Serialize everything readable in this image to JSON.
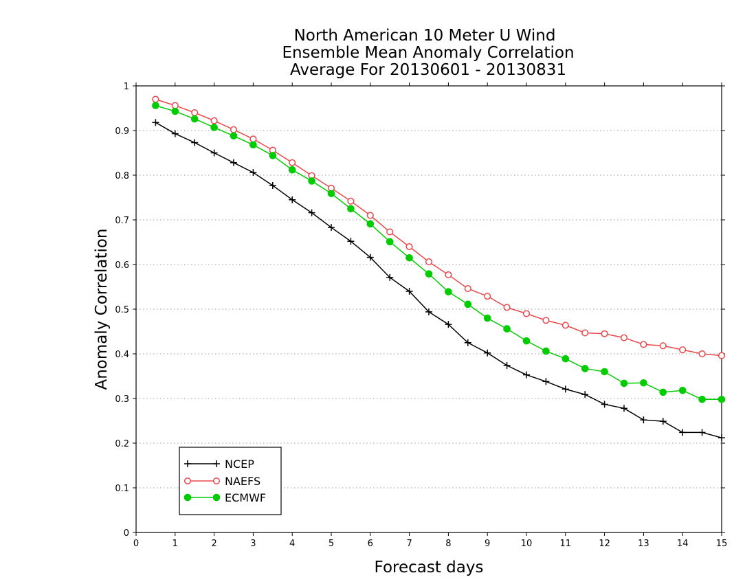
{
  "chart_data": {
    "type": "line",
    "title_lines": [
      "North American 10 Meter U Wind",
      "Ensemble Mean Anomaly Correlation",
      "Average For 20130601 - 20130831"
    ],
    "xlabel": "Forecast days",
    "ylabel": "Anomaly Correlation",
    "xlim": [
      0,
      15
    ],
    "ylim": [
      0,
      1
    ],
    "x_ticks": [
      "0",
      "1",
      "2",
      "3",
      "4",
      "5",
      "6",
      "7",
      "8",
      "9",
      "10",
      "11",
      "12",
      "13",
      "14",
      "15"
    ],
    "y_ticks": [
      "0",
      "0.1",
      "0.2",
      "0.3",
      "0.4",
      "0.5",
      "0.6",
      "0.7",
      "0.8",
      "0.9",
      "1"
    ],
    "grid": "horizontal-dotted",
    "legend_position": "bottom-left",
    "x": [
      0.5,
      1,
      1.5,
      2,
      2.5,
      3,
      3.5,
      4,
      4.5,
      5,
      5.5,
      6,
      6.5,
      7,
      7.5,
      8,
      8.5,
      9,
      9.5,
      10,
      10.5,
      11,
      11.5,
      12,
      12.5,
      13,
      13.5,
      14,
      14.5,
      15
    ],
    "series": [
      {
        "name": "NCEP",
        "color": "#000000",
        "marker": "plus",
        "values": [
          0.918,
          0.893,
          0.873,
          0.85,
          0.828,
          0.806,
          0.777,
          0.745,
          0.716,
          0.683,
          0.652,
          0.616,
          0.571,
          0.54,
          0.494,
          0.466,
          0.425,
          0.402,
          0.374,
          0.353,
          0.338,
          0.321,
          0.309,
          0.287,
          0.278,
          0.252,
          0.249,
          0.224,
          0.224,
          0.212
        ]
      },
      {
        "name": "NAEFS",
        "color": "#e8484b",
        "marker": "open-circle",
        "values": [
          0.97,
          0.956,
          0.94,
          0.922,
          0.902,
          0.881,
          0.856,
          0.828,
          0.799,
          0.771,
          0.742,
          0.71,
          0.673,
          0.64,
          0.606,
          0.577,
          0.546,
          0.529,
          0.504,
          0.49,
          0.475,
          0.464,
          0.447,
          0.445,
          0.436,
          0.421,
          0.418,
          0.409,
          0.4,
          0.396
        ]
      },
      {
        "name": "ECMWF",
        "color": "#00cc00",
        "marker": "filled-circle",
        "values": [
          0.956,
          0.943,
          0.926,
          0.907,
          0.888,
          0.868,
          0.844,
          0.812,
          0.787,
          0.759,
          0.725,
          0.691,
          0.651,
          0.615,
          0.579,
          0.539,
          0.511,
          0.48,
          0.456,
          0.429,
          0.406,
          0.389,
          0.367,
          0.36,
          0.334,
          0.335,
          0.314,
          0.318,
          0.298,
          0.298
        ]
      }
    ]
  }
}
